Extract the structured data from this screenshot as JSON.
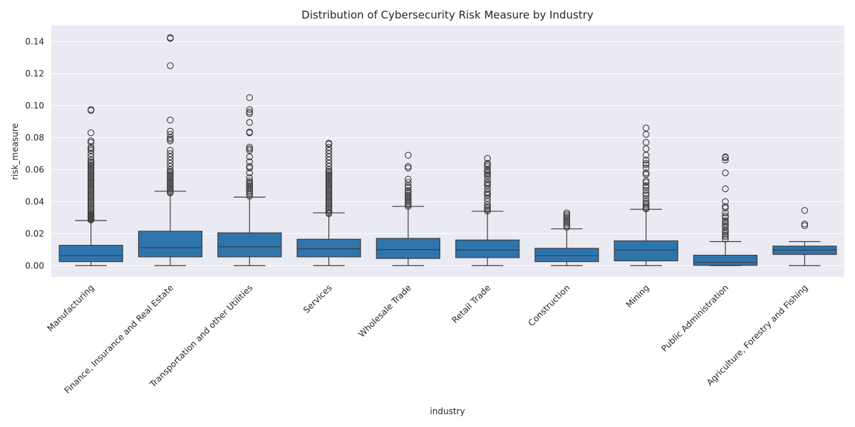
{
  "chart_data": {
    "type": "box",
    "title": "Distribution of Cybersecurity Risk Measure by Industry",
    "xlabel": "industry",
    "ylabel": "risk_measure",
    "ylim": [
      -0.007,
      0.15
    ],
    "yticks": [
      0.0,
      0.02,
      0.04,
      0.06,
      0.08,
      0.1,
      0.12,
      0.14
    ],
    "ytick_labels": [
      "0.00",
      "0.02",
      "0.04",
      "0.06",
      "0.08",
      "0.10",
      "0.12",
      "0.14"
    ],
    "grid": true,
    "box_color": "#2E75AE",
    "background_color": "#EAEAF2",
    "categories": [
      "Manufacturing",
      "Finance, Insurance and Real Estate",
      "Transportation and other Utilities",
      "Services",
      "Wholesale Trade",
      "Retail Trade",
      "Construction",
      "Mining",
      "Public Administration",
      "Agriculture, Forestry and Fishing"
    ],
    "boxes": [
      {
        "whisker_low": 0.0,
        "q1": 0.0025,
        "median": 0.0062,
        "q3": 0.0127,
        "whisker_high": 0.0282,
        "outliers": [
          0.0285,
          0.029,
          0.0295,
          0.03,
          0.0305,
          0.031,
          0.0315,
          0.032,
          0.033,
          0.034,
          0.035,
          0.036,
          0.037,
          0.038,
          0.039,
          0.04,
          0.041,
          0.042,
          0.043,
          0.044,
          0.045,
          0.046,
          0.047,
          0.048,
          0.049,
          0.05,
          0.051,
          0.052,
          0.053,
          0.054,
          0.055,
          0.056,
          0.057,
          0.058,
          0.059,
          0.06,
          0.061,
          0.062,
          0.063,
          0.064,
          0.065,
          0.066,
          0.068,
          0.07,
          0.072,
          0.073,
          0.074,
          0.077,
          0.078,
          0.083,
          0.097,
          0.0975
        ]
      },
      {
        "whisker_low": 0.0,
        "q1": 0.0055,
        "median": 0.0112,
        "q3": 0.0215,
        "whisker_high": 0.0465,
        "outliers": [
          0.0455,
          0.046,
          0.047,
          0.048,
          0.049,
          0.05,
          0.051,
          0.052,
          0.053,
          0.054,
          0.055,
          0.056,
          0.057,
          0.058,
          0.059,
          0.06,
          0.062,
          0.064,
          0.066,
          0.068,
          0.07,
          0.072,
          0.078,
          0.079,
          0.08,
          0.082,
          0.084,
          0.091,
          0.125,
          0.142,
          0.1425
        ]
      },
      {
        "whisker_low": 0.0,
        "q1": 0.0055,
        "median": 0.0118,
        "q3": 0.0205,
        "whisker_high": 0.0428,
        "outliers": [
          0.0435,
          0.045,
          0.046,
          0.047,
          0.048,
          0.049,
          0.05,
          0.051,
          0.052,
          0.053,
          0.055,
          0.058,
          0.061,
          0.062,
          0.065,
          0.068,
          0.072,
          0.073,
          0.074,
          0.083,
          0.0835,
          0.0895,
          0.095,
          0.096,
          0.0975,
          0.105
        ]
      },
      {
        "whisker_low": 0.0,
        "q1": 0.0055,
        "median": 0.0105,
        "q3": 0.0165,
        "whisker_high": 0.033,
        "outliers": [
          0.0325,
          0.033,
          0.034,
          0.035,
          0.036,
          0.037,
          0.038,
          0.039,
          0.04,
          0.041,
          0.042,
          0.043,
          0.044,
          0.045,
          0.046,
          0.047,
          0.048,
          0.049,
          0.05,
          0.051,
          0.052,
          0.053,
          0.054,
          0.055,
          0.056,
          0.057,
          0.058,
          0.059,
          0.06,
          0.062,
          0.064,
          0.066,
          0.068,
          0.07,
          0.072,
          0.074,
          0.076,
          0.0765
        ]
      },
      {
        "whisker_low": 0.0,
        "q1": 0.0045,
        "median": 0.01,
        "q3": 0.017,
        "whisker_high": 0.037,
        "outliers": [
          0.037,
          0.038,
          0.039,
          0.04,
          0.041,
          0.042,
          0.043,
          0.044,
          0.045,
          0.046,
          0.047,
          0.049,
          0.05,
          0.052,
          0.054,
          0.061,
          0.062,
          0.069
        ]
      },
      {
        "whisker_low": 0.0,
        "q1": 0.005,
        "median": 0.0098,
        "q3": 0.016,
        "whisker_high": 0.034,
        "outliers": [
          0.034,
          0.035,
          0.036,
          0.037,
          0.038,
          0.04,
          0.042,
          0.044,
          0.045,
          0.046,
          0.048,
          0.05,
          0.051,
          0.052,
          0.054,
          0.056,
          0.057,
          0.058,
          0.059,
          0.06,
          0.062,
          0.063,
          0.064,
          0.067
        ]
      },
      {
        "whisker_low": 0.0,
        "q1": 0.0025,
        "median": 0.0062,
        "q3": 0.0108,
        "whisker_high": 0.023,
        "outliers": [
          0.024,
          0.025,
          0.026,
          0.027,
          0.028,
          0.029,
          0.03,
          0.031,
          0.032,
          0.033
        ]
      },
      {
        "whisker_low": 0.0,
        "q1": 0.003,
        "median": 0.0098,
        "q3": 0.0155,
        "whisker_high": 0.0352,
        "outliers": [
          0.0355,
          0.036,
          0.037,
          0.038,
          0.039,
          0.04,
          0.042,
          0.044,
          0.045,
          0.047,
          0.049,
          0.05,
          0.052,
          0.053,
          0.057,
          0.058,
          0.061,
          0.063,
          0.064,
          0.066,
          0.069,
          0.073,
          0.077,
          0.082,
          0.086
        ]
      },
      {
        "whisker_low": 0.0,
        "q1": 0.0002,
        "median": 0.002,
        "q3": 0.0065,
        "whisker_high": 0.015,
        "outliers": [
          0.0165,
          0.018,
          0.019,
          0.02,
          0.021,
          0.022,
          0.024,
          0.025,
          0.026,
          0.027,
          0.028,
          0.03,
          0.031,
          0.033,
          0.036,
          0.037,
          0.04,
          0.048,
          0.058,
          0.066,
          0.0675,
          0.068
        ]
      },
      {
        "whisker_low": 0.0,
        "q1": 0.007,
        "median": 0.0098,
        "q3": 0.0122,
        "whisker_high": 0.015,
        "outliers": [
          0.025,
          0.026,
          0.0345
        ]
      }
    ]
  }
}
